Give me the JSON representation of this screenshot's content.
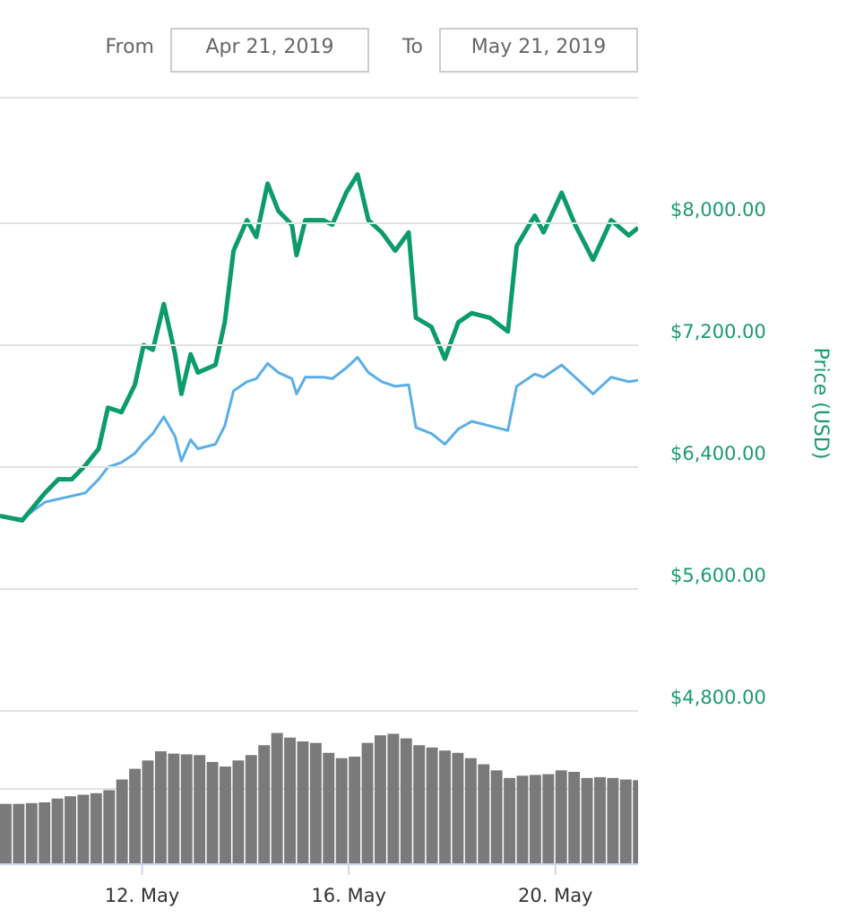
{
  "range_selector": {
    "from_label": "From",
    "from": "Apr 21, 2019",
    "to_label": "To",
    "to": "May 21, 2019"
  },
  "chart_data": [
    {
      "type": "line",
      "ylabel": "Price (USD)",
      "x": [
        9.25,
        9.68,
        10.12,
        10.38,
        10.64,
        10.9,
        11.16,
        11.34,
        11.6,
        11.86,
        12.03,
        12.21,
        12.42,
        12.64,
        12.76,
        12.94,
        13.08,
        13.42,
        13.6,
        13.77,
        14.03,
        14.21,
        14.43,
        14.64,
        14.9,
        14.99,
        15.16,
        15.51,
        15.68,
        15.95,
        16.17,
        16.38,
        16.64,
        16.9,
        17.16,
        17.3,
        17.6,
        17.86,
        18.12,
        18.38,
        18.73,
        19.08,
        19.25,
        19.6,
        19.77,
        20.12,
        20.38,
        20.73,
        21.08,
        21.42,
        21.6
      ],
      "series": [
        {
          "color": "#5aaee6",
          "values": [
            6080,
            6060,
            6170,
            6190,
            6210,
            6230,
            6320,
            6400,
            6430,
            6490,
            6560,
            6620,
            6730,
            6600,
            6440,
            6580,
            6520,
            6550,
            6670,
            6900,
            6960,
            6980,
            7080,
            7020,
            6980,
            6880,
            6990,
            6990,
            6980,
            7050,
            7120,
            7020,
            6960,
            6930,
            6940,
            6660,
            6620,
            6550,
            6650,
            6700,
            6670,
            6640,
            6930,
            7010,
            6990,
            7070,
            6990,
            6880,
            6990,
            6960,
            6970
          ]
        },
        {
          "color": "#0b9b6c",
          "values": [
            6080,
            6050,
            6230,
            6320,
            6320,
            6410,
            6520,
            6790,
            6760,
            6940,
            7200,
            7170,
            7470,
            7140,
            6880,
            7140,
            7020,
            7070,
            7350,
            7820,
            8020,
            7910,
            8260,
            8080,
            7990,
            7790,
            8020,
            8020,
            7990,
            8200,
            8320,
            8020,
            7940,
            7820,
            7940,
            7380,
            7320,
            7110,
            7350,
            7410,
            7380,
            7290,
            7850,
            8050,
            7940,
            8200,
            7990,
            7760,
            8020,
            7920,
            7970
          ]
        }
      ],
      "xlim": [
        9.25,
        21.6
      ],
      "ylim": [
        4800,
        8800
      ],
      "yticks": [
        {
          "value": 4800,
          "label": "$4,800.00"
        },
        {
          "value": 5600,
          "label": "$5,600.00"
        },
        {
          "value": 6400,
          "label": "$6,400.00"
        },
        {
          "value": 7200,
          "label": "$7,200.00"
        },
        {
          "value": 8000,
          "label": "$8,000.00"
        }
      ],
      "grid": true
    },
    {
      "type": "bar",
      "color": "#7a7a7a",
      "x": [
        9.25,
        9.5,
        9.75,
        10.0,
        10.25,
        10.5,
        10.75,
        11.0,
        11.25,
        11.5,
        11.75,
        12.0,
        12.25,
        12.5,
        12.75,
        13.0,
        13.25,
        13.5,
        13.75,
        14.0,
        14.25,
        14.5,
        14.75,
        15.0,
        15.25,
        15.5,
        15.75,
        16.0,
        16.25,
        16.5,
        16.75,
        17.0,
        17.25,
        17.5,
        17.75,
        18.0,
        18.25,
        18.5,
        18.75,
        19.0,
        19.25,
        19.5,
        19.75,
        20.0,
        20.25,
        20.5,
        20.75,
        21.0,
        21.25,
        21.5
      ],
      "values": [
        0.78,
        0.78,
        0.79,
        0.8,
        0.85,
        0.88,
        0.9,
        0.92,
        0.96,
        1.1,
        1.24,
        1.35,
        1.47,
        1.44,
        1.43,
        1.42,
        1.33,
        1.27,
        1.35,
        1.42,
        1.55,
        1.71,
        1.65,
        1.6,
        1.58,
        1.45,
        1.38,
        1.4,
        1.58,
        1.68,
        1.7,
        1.64,
        1.55,
        1.52,
        1.48,
        1.45,
        1.38,
        1.3,
        1.22,
        1.12,
        1.15,
        1.16,
        1.17,
        1.22,
        1.2,
        1.12,
        1.13,
        1.12,
        1.1,
        1.09
      ],
      "bar_width": 0.25,
      "xlim": [
        9.25,
        21.6
      ],
      "ylim": [
        0,
        2
      ],
      "xticks": [
        {
          "value": 12,
          "label": "12. May"
        },
        {
          "value": 16,
          "label": "16. May"
        },
        {
          "value": 20,
          "label": "20. May"
        }
      ]
    }
  ]
}
